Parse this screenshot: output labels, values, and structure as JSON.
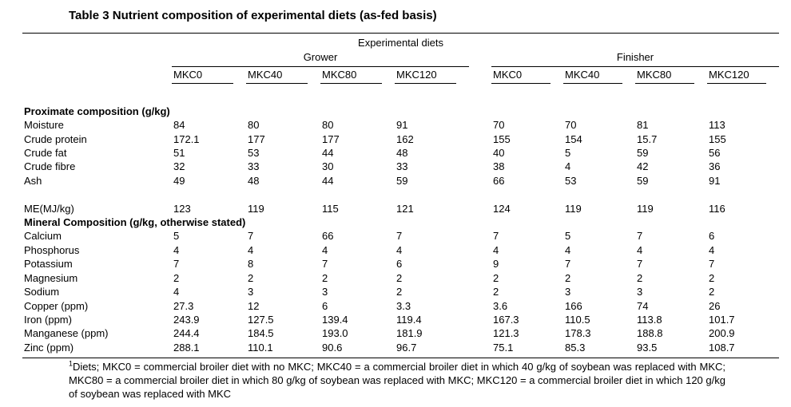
{
  "title": {
    "marker": "Table 3",
    "text": " Nutrient composition of experimental diets (as-fed basis)"
  },
  "table": {
    "top_header": "Experimental diets",
    "groups": [
      {
        "label": "Grower",
        "columns": [
          "MKC0",
          "MKC40",
          "MKC80",
          "MKC120"
        ]
      },
      {
        "label": "Finisher",
        "columns": [
          "MKC0",
          "MKC40",
          "MKC80",
          "MKC120"
        ]
      }
    ],
    "rows": [
      {
        "type": "section",
        "label": "Proximate composition (g/kg)"
      },
      {
        "type": "data",
        "label": "Moisture",
        "values": [
          "84",
          "80",
          "80",
          "91",
          "70",
          "70",
          "81",
          "113"
        ]
      },
      {
        "type": "data",
        "label": "Crude protein",
        "values": [
          "172.1",
          "177",
          "177",
          "162",
          "155",
          "154",
          "15.7",
          "155"
        ]
      },
      {
        "type": "data",
        "label": "Crude fat",
        "values": [
          "51",
          "53",
          "44",
          "48",
          "40",
          "5",
          "59",
          "56"
        ]
      },
      {
        "type": "data",
        "label": "Crude fibre",
        "values": [
          "32",
          "33",
          "30",
          "33",
          "38",
          "4",
          "42",
          "36"
        ]
      },
      {
        "type": "data",
        "label": "Ash",
        "values": [
          "49",
          "48",
          "44",
          "59",
          "66",
          "53",
          "59",
          "91"
        ]
      },
      {
        "type": "spacer"
      },
      {
        "type": "data",
        "label": "ME(MJ/kg)",
        "values": [
          "123",
          "119",
          "115",
          "121",
          "124",
          "119",
          "119",
          "116"
        ]
      },
      {
        "type": "section",
        "label": "Mineral Composition (g/kg, otherwise stated)"
      },
      {
        "type": "data",
        "label": "Calcium",
        "values": [
          "5",
          "7",
          "66",
          "7",
          "7",
          "5",
          "7",
          "6"
        ]
      },
      {
        "type": "data",
        "label": "Phosphorus",
        "values": [
          "4",
          "4",
          "4",
          "4",
          "4",
          "4",
          "4",
          "4"
        ]
      },
      {
        "type": "data",
        "label": "Potassium",
        "values": [
          "7",
          "8",
          "7",
          "6",
          "9",
          "7",
          "7",
          "7"
        ]
      },
      {
        "type": "data",
        "label": "Magnesium",
        "values": [
          "2",
          "2",
          "2",
          "2",
          "2",
          "2",
          "2",
          "2"
        ]
      },
      {
        "type": "data",
        "label": "Sodium",
        "values": [
          "4",
          "3",
          "3",
          "2",
          "2",
          "3",
          "3",
          "2"
        ]
      },
      {
        "type": "data",
        "label": "Copper (ppm)",
        "values": [
          "27.3",
          "12",
          "6",
          "3.3",
          "3.6",
          "166",
          "74",
          "26"
        ]
      },
      {
        "type": "data",
        "label": "Iron (ppm)",
        "values": [
          "243.9",
          "127.5",
          "139.4",
          "119.4",
          "167.3",
          "110.5",
          "113.8",
          "101.7"
        ]
      },
      {
        "type": "data",
        "label": "Manganese (ppm)",
        "values": [
          "244.4",
          "184.5",
          "193.0",
          "181.9",
          "121.3",
          "178.3",
          "188.8",
          "200.9"
        ]
      },
      {
        "type": "data",
        "label": "Zinc (ppm)",
        "values": [
          "288.1",
          "110.1",
          "90.6",
          "96.7",
          "75.1",
          "85.3",
          "93.5",
          "108.7"
        ]
      }
    ]
  },
  "footnote": {
    "marker": "1",
    "text": "Diets; MKC0 = commercial broiler diet with no MKC; MKC40 = a commercial broiler diet in which 40 g/kg of soybean was replaced with MKC; MKC80 = a commercial broiler diet in which 80 g/kg of soybean was replaced with MKC; MKC120 = a commercial broiler diet in which 120 g/kg of soybean was replaced with MKC"
  }
}
